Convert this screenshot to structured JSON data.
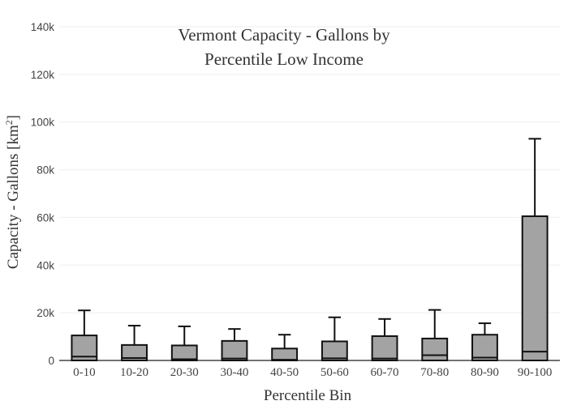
{
  "chart_data": {
    "type": "box",
    "title": "Vermont Capacity - Gallons by Percentile Low Income",
    "title_lines": [
      "Vermont Capacity - Gallons by",
      "Percentile Low Income"
    ],
    "xlabel": "Percentile Bin",
    "ylabel": "Capacity - Gallons  [km",
    "ylabel_superscript": "2",
    "ylabel_close": "]",
    "ylim": [
      0,
      140000
    ],
    "yticks": [
      0,
      20000,
      40000,
      60000,
      80000,
      100000,
      120000,
      140000
    ],
    "ytick_labels": [
      "0",
      "20k",
      "40k",
      "60k",
      "80k",
      "100k",
      "120k",
      "140k"
    ],
    "categories": [
      "0-10",
      "10-20",
      "20-30",
      "30-40",
      "40-50",
      "50-60",
      "60-70",
      "70-80",
      "80-90",
      "90-100"
    ],
    "boxes": [
      {
        "min": 0,
        "q1": 0,
        "median": 1600,
        "q3": 10500,
        "max": 21000
      },
      {
        "min": 0,
        "q1": 0,
        "median": 1000,
        "q3": 6500,
        "max": 14600
      },
      {
        "min": 0,
        "q1": 0,
        "median": 500,
        "q3": 6300,
        "max": 14300
      },
      {
        "min": 0,
        "q1": 0,
        "median": 800,
        "q3": 8200,
        "max": 13200
      },
      {
        "min": 0,
        "q1": 0,
        "median": 300,
        "q3": 5000,
        "max": 10800
      },
      {
        "min": 0,
        "q1": 0,
        "median": 900,
        "q3": 8000,
        "max": 18100
      },
      {
        "min": 0,
        "q1": 0,
        "median": 800,
        "q3": 10200,
        "max": 17400
      },
      {
        "min": 0,
        "q1": 0,
        "median": 2200,
        "q3": 9200,
        "max": 21200
      },
      {
        "min": 0,
        "q1": 0,
        "median": 1200,
        "q3": 10800,
        "max": 15600
      },
      {
        "min": 0,
        "q1": 0,
        "median": 3700,
        "q3": 60500,
        "max": 93000
      }
    ],
    "box_fill": "#a3a3a3",
    "box_stroke": "#111111",
    "grid": true,
    "legend": "none"
  }
}
